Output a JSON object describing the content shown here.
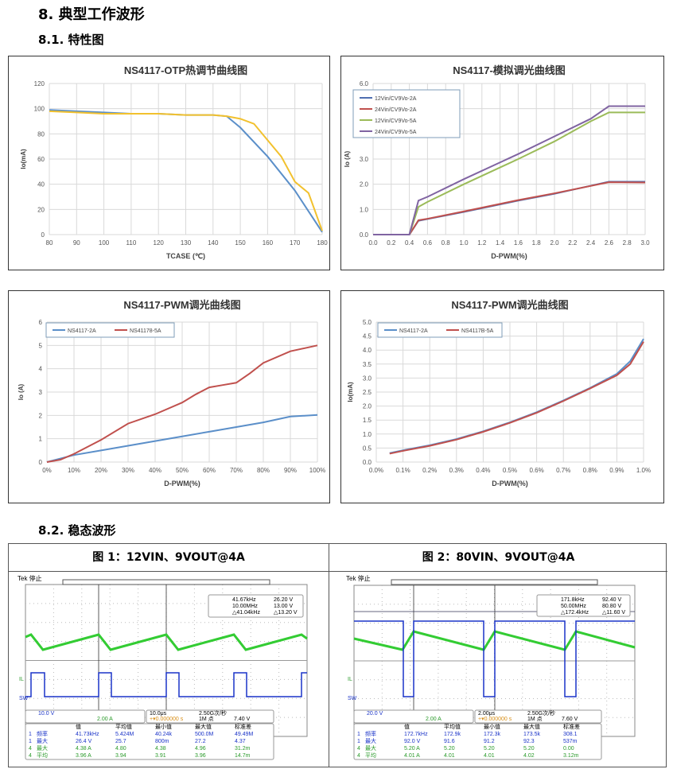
{
  "headings": {
    "section": "8.  典型工作波形",
    "sub1": "8.1. 特性图",
    "sub2": "8.2. 稳态波形"
  },
  "colors": {
    "blue": "#5b8fc9",
    "yellow": "#f2c12e",
    "red": "#c0504d",
    "green": "#9bbb59",
    "purple": "#8064a2",
    "scope_ch1": "#1a33c8",
    "scope_ch4": "#33cc33"
  },
  "chart_data": [
    {
      "type": "line",
      "title": "NS4117-OTP热调节曲线图",
      "xlabel": "TCASE (℃)",
      "ylabel": "Io(mA)",
      "xlim": [
        80,
        180
      ],
      "ylim": [
        0,
        120
      ],
      "xticks": [
        "80",
        "90",
        "100",
        "110",
        "120",
        "130",
        "140",
        "150",
        "160",
        "170",
        "180"
      ],
      "yticks": [
        "0",
        "20",
        "40",
        "60",
        "80",
        "100",
        "120"
      ],
      "grid": true,
      "series": [
        {
          "color": "#5b8fc9",
          "x": [
            80,
            90,
            100,
            110,
            120,
            130,
            140,
            145,
            150,
            160,
            170,
            180
          ],
          "y": [
            99,
            98,
            97,
            96,
            96,
            95,
            95,
            94,
            85,
            62,
            35,
            2
          ]
        },
        {
          "color": "#f2c12e",
          "x": [
            80,
            90,
            100,
            120,
            130,
            140,
            145,
            150,
            155,
            160,
            165,
            170,
            175,
            180
          ],
          "y": [
            98,
            97,
            96,
            96,
            95,
            95,
            94,
            92,
            88,
            75,
            62,
            42,
            33,
            3
          ]
        }
      ]
    },
    {
      "type": "line",
      "title": "NS4117-模拟调光曲线图",
      "xlabel": "D-PWM(%)",
      "ylabel": "Io (A)",
      "xlim": [
        0,
        3.0
      ],
      "ylim": [
        0,
        6
      ],
      "legend": "top-left",
      "xticks": [
        "0.0",
        "0.2",
        "0.4",
        "0.6",
        "0.8",
        "1.0",
        "1.2",
        "1.4",
        "1.6",
        "1.8",
        "2.0",
        "2.2",
        "2.4",
        "2.6",
        "2.8",
        "3.0"
      ],
      "yticks": [
        "0.0",
        "1.0",
        "2.0",
        "3.0",
        "4.0",
        "5.0",
        "6.0"
      ],
      "grid": true,
      "series": [
        {
          "name": "12Vin/CV9Vo-2A",
          "color": "#4f6fb0",
          "x": [
            0,
            0.4,
            0.5,
            0.6,
            1.0,
            1.6,
            2.0,
            2.6,
            3.0
          ],
          "y": [
            0,
            0,
            0.55,
            0.62,
            0.9,
            1.35,
            1.62,
            2.1,
            2.1
          ]
        },
        {
          "name": "24Vin/CV9Vo-2A",
          "color": "#c0504d",
          "x": [
            0,
            0.4,
            0.5,
            0.6,
            1.0,
            1.6,
            2.0,
            2.6,
            3.0
          ],
          "y": [
            0,
            0,
            0.57,
            0.63,
            0.92,
            1.37,
            1.64,
            2.08,
            2.07
          ]
        },
        {
          "name": "12Vin/CV9Vo-5A",
          "color": "#9bbb59",
          "x": [
            0,
            0.4,
            0.5,
            0.6,
            1.0,
            1.6,
            2.0,
            2.4,
            2.6,
            3.0
          ],
          "y": [
            0,
            0,
            1.1,
            1.3,
            2.0,
            3.0,
            3.7,
            4.5,
            4.85,
            4.85
          ]
        },
        {
          "name": "24Vin/CV9Vo-5A",
          "color": "#8064a2",
          "x": [
            0,
            0.4,
            0.5,
            0.6,
            1.0,
            1.6,
            2.0,
            2.4,
            2.6,
            3.0
          ],
          "y": [
            0,
            0,
            1.35,
            1.5,
            2.2,
            3.2,
            3.9,
            4.6,
            5.1,
            5.1
          ]
        }
      ]
    },
    {
      "type": "line",
      "title": "NS4117-PWM调光曲线图",
      "xlabel": "D-PWM(%)",
      "ylabel": "Io (A)",
      "xlim": [
        0,
        100
      ],
      "ylim": [
        0,
        6
      ],
      "legend": "top-left",
      "xticks": [
        "0%",
        "10%",
        "20%",
        "30%",
        "40%",
        "50%",
        "60%",
        "70%",
        "80%",
        "90%",
        "100%"
      ],
      "yticks": [
        "0",
        "1",
        "2",
        "3",
        "4",
        "5",
        "6"
      ],
      "grid": true,
      "series": [
        {
          "name": "NS4117-2A",
          "color": "#5b8fc9",
          "x": [
            0,
            10,
            20,
            30,
            40,
            50,
            60,
            70,
            80,
            90,
            100
          ],
          "y": [
            0,
            0.3,
            0.5,
            0.7,
            0.9,
            1.1,
            1.3,
            1.5,
            1.7,
            1.95,
            2.02
          ]
        },
        {
          "name": "NS41178-5A",
          "color": "#c0504d",
          "x": [
            0,
            5,
            10,
            20,
            30,
            40,
            50,
            55,
            60,
            65,
            70,
            75,
            80,
            90,
            100
          ],
          "y": [
            0,
            0.1,
            0.35,
            0.95,
            1.65,
            2.05,
            2.55,
            2.9,
            3.2,
            3.3,
            3.4,
            3.8,
            4.25,
            4.75,
            5.0
          ]
        }
      ]
    },
    {
      "type": "line",
      "title": "NS4117-PWM调光曲线图",
      "xlabel": "D-PWM(%)",
      "ylabel": "Io(mA)",
      "xlim": [
        0,
        1.0
      ],
      "ylim": [
        0,
        5
      ],
      "legend": "top-left",
      "xticks": [
        "0.0%",
        "0.1%",
        "0.2%",
        "0.3%",
        "0.4%",
        "0.5%",
        "0.6%",
        "0.7%",
        "0.8%",
        "0.9%",
        "1.0%"
      ],
      "yticks": [
        "0.0",
        "0.5",
        "1.0",
        "1.5",
        "2.0",
        "2.5",
        "3.0",
        "3.5",
        "4.0",
        "4.5",
        "5.0"
      ],
      "grid": true,
      "series": [
        {
          "name": "NS4117-2A",
          "color": "#5b8fc9",
          "x": [
            0.05,
            0.1,
            0.2,
            0.3,
            0.4,
            0.5,
            0.6,
            0.7,
            0.8,
            0.9,
            0.95,
            1.0
          ],
          "y": [
            0.32,
            0.42,
            0.6,
            0.82,
            1.1,
            1.42,
            1.78,
            2.2,
            2.65,
            3.15,
            3.6,
            4.4
          ]
        },
        {
          "name": "NS4117B-5A",
          "color": "#c0504d",
          "x": [
            0.05,
            0.1,
            0.2,
            0.3,
            0.4,
            0.5,
            0.6,
            0.7,
            0.8,
            0.9,
            0.95,
            1.0
          ],
          "y": [
            0.3,
            0.4,
            0.58,
            0.8,
            1.08,
            1.4,
            1.76,
            2.18,
            2.63,
            3.1,
            3.5,
            4.3
          ]
        }
      ]
    }
  ],
  "scopes": [
    {
      "title": "图 1：12VIN、9VOUT@4A",
      "brand": "Tek 停止",
      "ch_il": "IL",
      "ch_sw": "SW",
      "cursor": [
        "41.67kHz",
        "26.20 V",
        "10.00MHz",
        "13.00 V",
        "△41.04kHz",
        "△13.20 V"
      ],
      "ch1_scale": "10.0 V",
      "ch4_scale": "2.00 A",
      "timebase": "10.0μs",
      "samplerate": "2.50G次/秒",
      "trig_pos": "+▾0.000000 s",
      "points": "1M 点",
      "trig_level": "7.40 V",
      "meas_head": [
        "值",
        "平均值",
        "最小值",
        "最大值",
        "标准差"
      ],
      "meas": [
        {
          "ch": "1",
          "name": "频率",
          "v": [
            "41.73kHz",
            "5.424M",
            "40.24k",
            "500.0M",
            "49.49M"
          ]
        },
        {
          "ch": "1",
          "name": "最大",
          "v": [
            "26.4 V",
            "25.7",
            "800m",
            "27.2",
            "4.37"
          ]
        },
        {
          "ch": "4",
          "name": "最大",
          "v": [
            "4.38 A",
            "4.80",
            "4.38",
            "4.96",
            "31.2m"
          ]
        },
        {
          "ch": "4",
          "name": "平均",
          "v": [
            "3.96 A",
            "3.94",
            "3.91",
            "3.96",
            "14.7m"
          ]
        }
      ]
    },
    {
      "title": "图 2：80VIN、9VOUT@4A",
      "brand": "Tek 停止",
      "ch_il": "IL",
      "ch_sw": "SW",
      "cursor": [
        "171.8kHz",
        "92.40 V",
        "50.00MHz",
        "80.80 V",
        "△172.4kHz",
        "△11.60 V"
      ],
      "ch1_scale": "20.0 V",
      "ch4_scale": "2.00 A",
      "timebase": "2.00μs",
      "samplerate": "2.50G次/秒",
      "trig_pos": "+▾0.000000 s",
      "points": "1M 点",
      "trig_level": "7.60 V",
      "meas_head": [
        "值",
        "平均值",
        "最小值",
        "最大值",
        "标准差"
      ],
      "meas": [
        {
          "ch": "1",
          "name": "频率",
          "v": [
            "172.7kHz",
            "172.9k",
            "172.3k",
            "173.5k",
            "308.1"
          ]
        },
        {
          "ch": "1",
          "name": "最大",
          "v": [
            "92.0 V",
            "91.6",
            "91.2",
            "92.3",
            "537m"
          ]
        },
        {
          "ch": "4",
          "name": "最大",
          "v": [
            "5.20 A",
            "5.20",
            "5.20",
            "5.20",
            "0.00"
          ]
        },
        {
          "ch": "4",
          "name": "平均",
          "v": [
            "4.01 A",
            "4.01",
            "4.01",
            "4.02",
            "3.12m"
          ]
        }
      ]
    }
  ]
}
